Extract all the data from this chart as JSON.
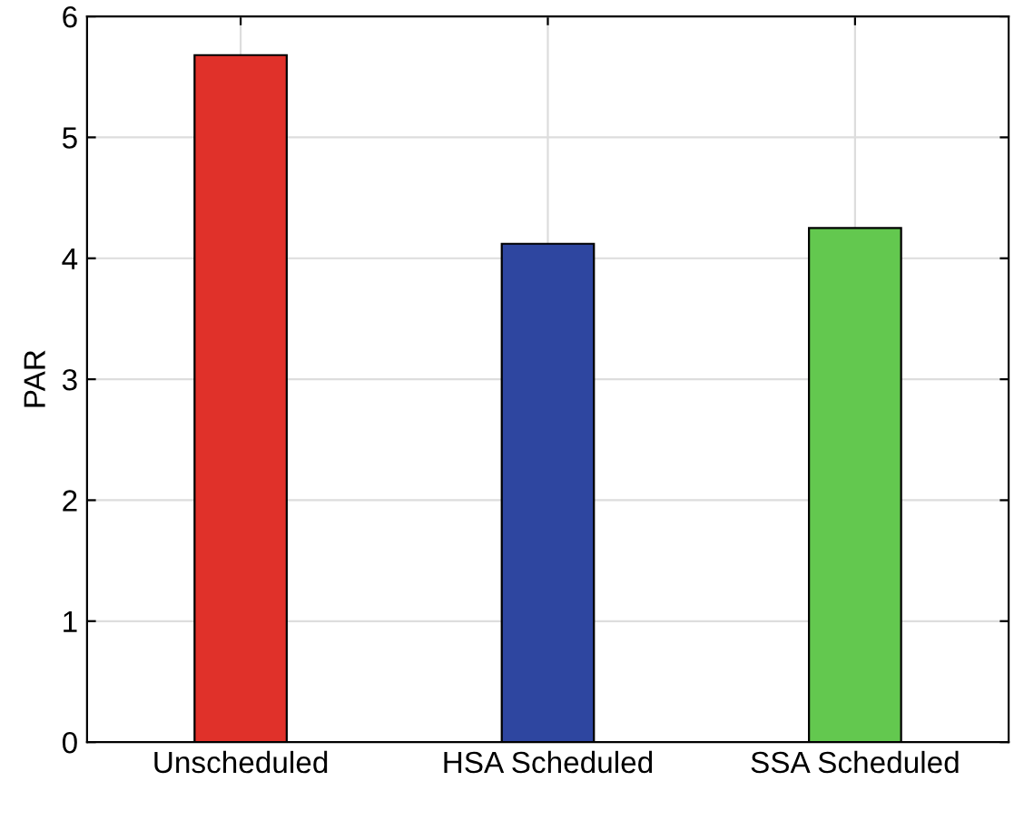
{
  "chart_data": {
    "type": "bar",
    "ylabel": "PAR",
    "categories": [
      "Unscheduled",
      "HSA Scheduled",
      "SSA Scheduled"
    ],
    "values": [
      5.68,
      4.12,
      4.25
    ],
    "colors": [
      "#e0312a",
      "#2e46a0",
      "#63c84f"
    ],
    "ylim": [
      0,
      6
    ],
    "yticks": [
      0,
      1,
      2,
      3,
      4,
      5,
      6
    ],
    "grid": true
  }
}
